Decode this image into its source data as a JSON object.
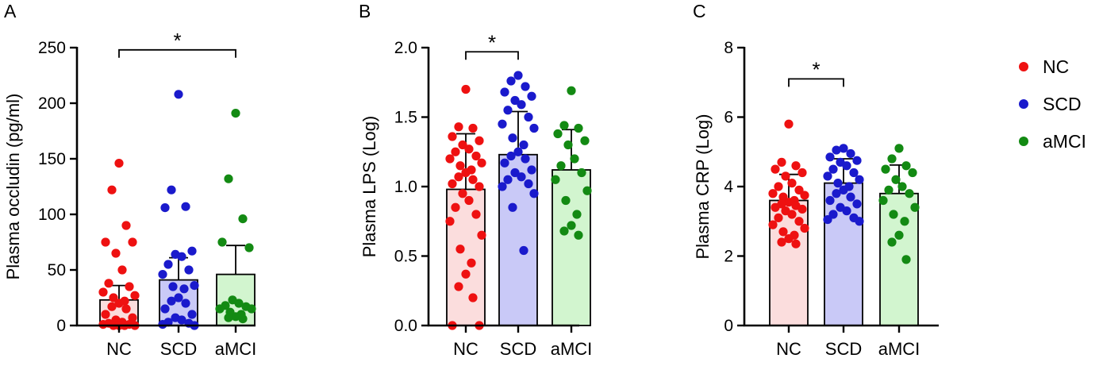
{
  "legend": [
    {
      "label": "NC",
      "color": "#ee1111",
      "fill": "#fbdddd"
    },
    {
      "label": "SCD",
      "color": "#1a1acc",
      "fill": "#c9c9f7"
    },
    {
      "label": "aMCI",
      "color": "#138a13",
      "fill": "#d2f5cf"
    }
  ],
  "chart_data": [
    {
      "type": "bar",
      "panel": "A",
      "ylabel": "Plasma occludin  (pg/ml)",
      "categories": [
        "NC",
        "SCD",
        "aMCI"
      ],
      "ylim": [
        0,
        250
      ],
      "yticks": [
        0,
        50,
        100,
        150,
        200,
        250
      ],
      "ytick_labels": [
        "0",
        "50",
        "100",
        "150",
        "200",
        "250"
      ],
      "means": [
        23,
        41,
        46
      ],
      "sd_upper": [
        36,
        61,
        72
      ],
      "points": [
        [
          146,
          122,
          90,
          75,
          75,
          65,
          50,
          38,
          35,
          30,
          27,
          25,
          22,
          20,
          17,
          15,
          10,
          7,
          5,
          3,
          2,
          1,
          1,
          0,
          0,
          0,
          0
        ],
        [
          208,
          122,
          107,
          106,
          67,
          64,
          62,
          55,
          50,
          46,
          36,
          35,
          33,
          25,
          22,
          20,
          15,
          10,
          7,
          5,
          3,
          2,
          1,
          0
        ],
        [
          191,
          132,
          96,
          75,
          70,
          23,
          20,
          18,
          17,
          15,
          15,
          12,
          10,
          8,
          7,
          6
        ]
      ],
      "significance": [
        {
          "from": 0,
          "to": 2,
          "label": "*",
          "y": 248
        }
      ]
    },
    {
      "type": "bar",
      "panel": "B",
      "ylabel": "Plasma LPS (Log)",
      "categories": [
        "NC",
        "SCD",
        "aMCI"
      ],
      "ylim": [
        0,
        2.0
      ],
      "yticks": [
        0,
        0.5,
        1.0,
        1.5,
        2.0
      ],
      "ytick_labels": [
        "0.0",
        "0.5",
        "1.0",
        "1.5",
        "2.0"
      ],
      "means": [
        0.98,
        1.23,
        1.12
      ],
      "sd_upper": [
        1.38,
        1.54,
        1.41
      ],
      "points": [
        [
          1.7,
          1.43,
          1.42,
          1.36,
          1.33,
          1.3,
          1.27,
          1.25,
          1.22,
          1.2,
          1.17,
          1.15,
          1.12,
          1.1,
          1.07,
          1.05,
          1.02,
          1.0,
          0.95,
          0.9,
          0.85,
          0.8,
          0.75,
          0.65,
          0.55,
          0.45,
          0.37,
          0.28,
          0.2,
          0.0,
          0.0
        ],
        [
          1.8,
          1.76,
          1.72,
          1.68,
          1.65,
          1.62,
          1.59,
          1.55,
          1.5,
          1.45,
          1.42,
          1.35,
          1.3,
          1.25,
          1.22,
          1.2,
          1.17,
          1.12,
          1.1,
          1.07,
          1.05,
          1.02,
          1.0,
          0.95,
          0.85,
          0.54
        ],
        [
          1.69,
          1.44,
          1.42,
          1.38,
          1.33,
          1.3,
          1.2,
          1.15,
          1.1,
          1.05,
          0.97,
          0.9,
          0.8,
          0.72,
          0.68,
          0.65
        ]
      ],
      "significance": [
        {
          "from": 0,
          "to": 1,
          "label": "*",
          "y": 1.97
        }
      ]
    },
    {
      "type": "bar",
      "panel": "C",
      "ylabel": "Plasma CRP (Log)",
      "categories": [
        "NC",
        "SCD",
        "aMCI"
      ],
      "ylim": [
        0,
        8
      ],
      "yticks": [
        0,
        2,
        4,
        6,
        8
      ],
      "ytick_labels": [
        "0",
        "2",
        "4",
        "6",
        "8"
      ],
      "means": [
        3.6,
        4.1,
        3.8
      ],
      "sd_upper": [
        4.35,
        4.8,
        4.62
      ],
      "points": [
        [
          5.8,
          4.7,
          4.6,
          4.5,
          4.4,
          4.3,
          4.1,
          4.0,
          3.9,
          3.8,
          3.75,
          3.7,
          3.6,
          3.55,
          3.5,
          3.45,
          3.4,
          3.35,
          3.3,
          3.2,
          3.1,
          3.0,
          2.9,
          2.8,
          2.7,
          2.6,
          2.5,
          2.4,
          2.35
        ],
        [
          5.1,
          5.05,
          4.95,
          4.85,
          4.75,
          4.7,
          4.6,
          4.5,
          4.4,
          4.3,
          4.2,
          4.1,
          4.0,
          3.9,
          3.8,
          3.7,
          3.6,
          3.5,
          3.4,
          3.3,
          3.2,
          3.1,
          3.05,
          3.0
        ],
        [
          5.1,
          4.8,
          4.6,
          4.5,
          4.4,
          4.2,
          4.0,
          3.9,
          3.8,
          3.6,
          3.4,
          3.2,
          3.0,
          2.6,
          2.4,
          1.9
        ]
      ],
      "significance": [
        {
          "from": 0,
          "to": 1,
          "label": "*",
          "y": 7.1
        }
      ]
    }
  ]
}
